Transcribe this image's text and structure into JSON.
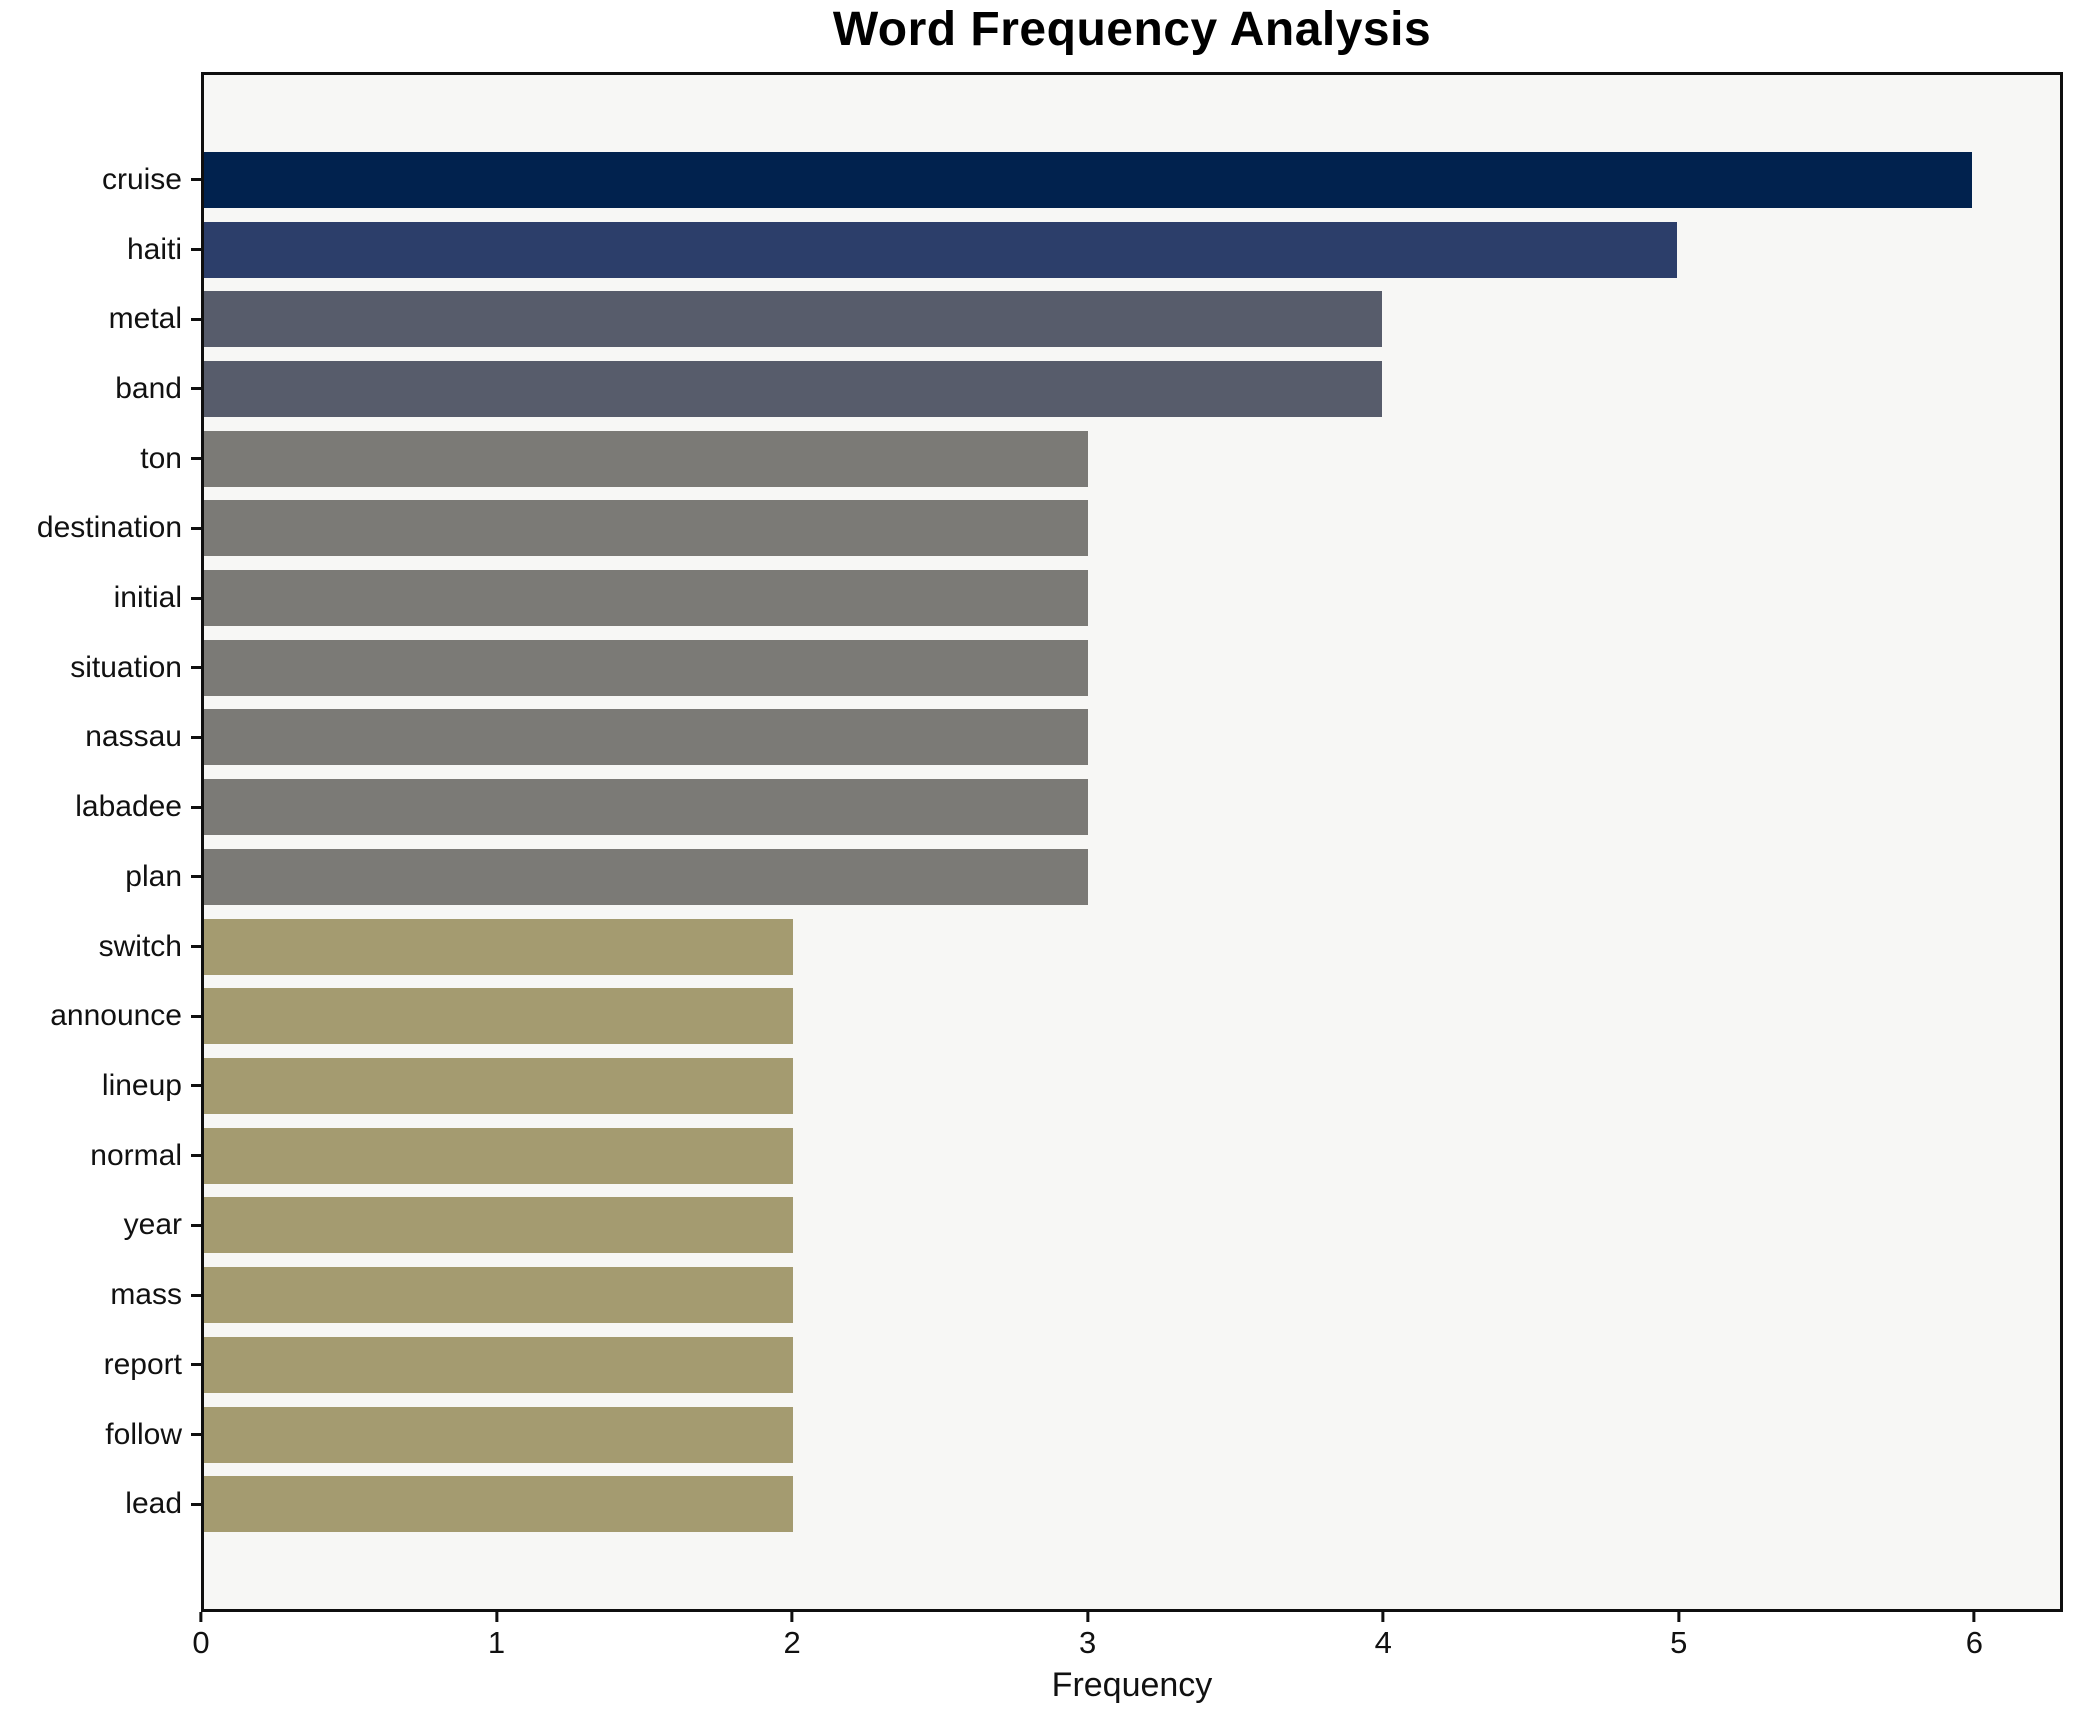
{
  "chart_data": {
    "type": "bar",
    "orientation": "horizontal",
    "title": "Word Frequency Analysis",
    "xlabel": "Frequency",
    "ylabel": "",
    "categories": [
      "cruise",
      "haiti",
      "metal",
      "band",
      "ton",
      "destination",
      "initial",
      "situation",
      "nassau",
      "labadee",
      "plan",
      "switch",
      "announce",
      "lineup",
      "normal",
      "year",
      "mass",
      "report",
      "follow",
      "lead"
    ],
    "values": [
      6,
      5,
      4,
      4,
      3,
      3,
      3,
      3,
      3,
      3,
      3,
      2,
      2,
      2,
      2,
      2,
      2,
      2,
      2,
      2
    ],
    "xticks": [
      0,
      1,
      2,
      3,
      4,
      5,
      6
    ],
    "xlim": [
      0,
      6.3
    ],
    "grid": false,
    "legend": null,
    "bar_height_fraction": 0.8,
    "colors_by_value": {
      "6": "#01224e",
      "5": "#2c3e6a",
      "4": "#575c6b",
      "3": "#7b7a76",
      "2": "#a49b70"
    },
    "plot_background": "#f7f7f5",
    "figure_background": "#ffffff",
    "spine_color": "#0f0f0f",
    "text_color": "#111111"
  }
}
